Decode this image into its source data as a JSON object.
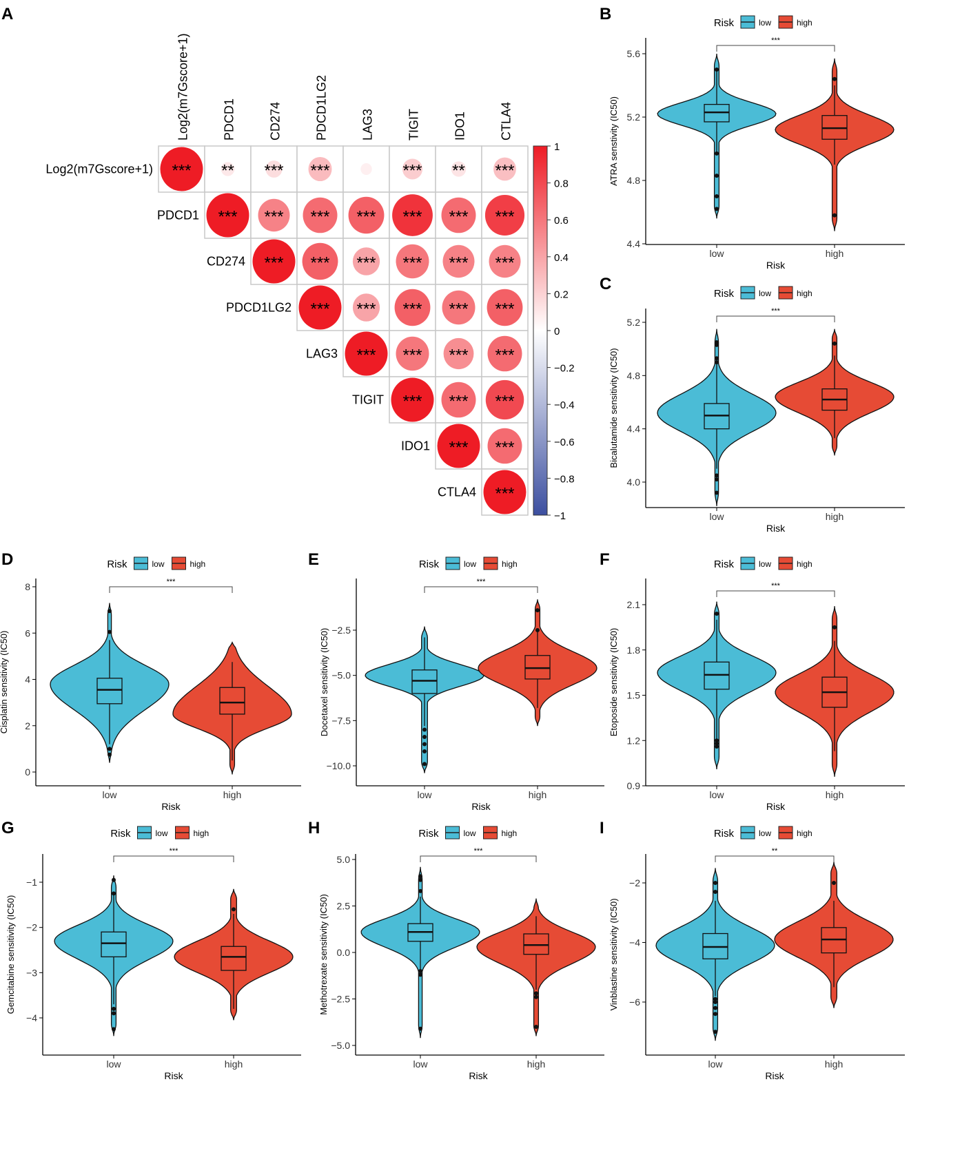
{
  "colors": {
    "low": "#4BBCD6",
    "high": "#E64B35",
    "corr_pos": "#EE1C25",
    "corr_neg": "#3C4FA0"
  },
  "panel_labels": [
    "A",
    "B",
    "C",
    "D",
    "E",
    "F",
    "G",
    "H",
    "I"
  ],
  "chart_data": [
    {
      "panel": "A",
      "type": "heatmap",
      "subtype": "correlation-circles",
      "variables": [
        "Log2(m7Gscore+1)",
        "PDCD1",
        "CD274",
        "PDCD1LG2",
        "LAG3",
        "TIGIT",
        "IDO1",
        "CTLA4"
      ],
      "matrix_upper": [
        [
          1,
          0.1,
          0.15,
          0.3,
          0.07,
          0.22,
          0.12,
          0.28
        ],
        [
          1,
          0.55,
          0.65,
          0.7,
          0.9,
          0.65,
          0.85
        ],
        [
          1,
          0.7,
          0.4,
          0.6,
          0.55,
          0.55
        ],
        [
          1,
          0.4,
          0.7,
          0.6,
          0.7
        ],
        [
          1,
          0.6,
          0.5,
          0.65
        ],
        [
          1,
          0.65,
          0.8
        ],
        [
          1,
          0.65
        ],
        [
          1
        ]
      ],
      "signif_upper": [
        [
          "***",
          "**",
          "***",
          "***",
          "",
          "***",
          "**",
          "***"
        ],
        [
          "***",
          "***",
          "***",
          "***",
          "***",
          "***",
          "***"
        ],
        [
          "***",
          "***",
          "***",
          "***",
          "***",
          "***"
        ],
        [
          "***",
          "***",
          "***",
          "***",
          "***"
        ],
        [
          "***",
          "***",
          "***",
          "***"
        ],
        [
          "***",
          "***",
          "***"
        ],
        [
          "***",
          "***"
        ],
        [
          "***"
        ]
      ],
      "colorbar_ticks": [
        "1",
        "0.8",
        "0.6",
        "0.4",
        "0.2",
        "0",
        "−0.2",
        "−0.4",
        "−0.6",
        "−0.8",
        "−1"
      ],
      "range": [
        -1,
        1
      ]
    },
    {
      "panel": "B",
      "type": "violin",
      "ylabel": "ATRA senstivity (IC50)",
      "xlabel": "Risk",
      "categories": [
        "low",
        "high"
      ],
      "legend_title": "Risk",
      "legend": [
        "low",
        "high"
      ],
      "signif": "***",
      "yticks": [
        "4.4",
        "4.8",
        "5.2",
        "5.6"
      ],
      "ylim": [
        4.4,
        5.6
      ],
      "groups": [
        {
          "name": "low",
          "min": 4.56,
          "max": 5.6,
          "peak": 5.22,
          "sd_lo": 0.07,
          "sd_hi": 0.07,
          "tail": 0.04,
          "q1": 5.17,
          "median": 5.23,
          "q3": 5.28,
          "whisker": [
            4.97,
            5.5
          ],
          "outliers": [
            5.5,
            4.97,
            4.83,
            4.7,
            4.62
          ]
        },
        {
          "name": "high",
          "min": 4.48,
          "max": 5.57,
          "peak": 5.12,
          "sd_lo": 0.09,
          "sd_hi": 0.09,
          "tail": 0.04,
          "q1": 5.06,
          "median": 5.13,
          "q3": 5.21,
          "whisker": [
            4.9,
            5.4
          ],
          "outliers": [
            5.44,
            4.58
          ]
        }
      ]
    },
    {
      "panel": "C",
      "type": "violin",
      "ylabel": "Bicalutamide sensitivity (IC50)",
      "xlabel": "Risk",
      "categories": [
        "low",
        "high"
      ],
      "legend_title": "Risk",
      "legend": [
        "low",
        "high"
      ],
      "signif": "***",
      "yticks": [
        "4.0",
        "4.4",
        "4.8",
        "5.2"
      ],
      "ylim": [
        4.0,
        5.2
      ],
      "groups": [
        {
          "name": "low",
          "min": 3.82,
          "max": 5.15,
          "peak": 4.52,
          "sd_lo": 0.14,
          "sd_hi": 0.14,
          "tail": 0.03,
          "q1": 4.4,
          "median": 4.5,
          "q3": 4.59,
          "whisker": [
            4.1,
            4.9
          ],
          "outliers": [
            5.05,
            5.03,
            4.93,
            4.9,
            4.05,
            4.02,
            3.92
          ]
        },
        {
          "name": "high",
          "min": 4.2,
          "max": 5.15,
          "peak": 4.64,
          "sd_lo": 0.12,
          "sd_hi": 0.11,
          "tail": 0.04,
          "q1": 4.54,
          "median": 4.62,
          "q3": 4.7,
          "whisker": [
            4.33,
            4.95
          ],
          "outliers": [
            5.04
          ]
        }
      ]
    },
    {
      "panel": "D",
      "type": "violin",
      "ylabel": "Cisplatin sensitivity (IC50)",
      "xlabel": "Risk",
      "categories": [
        "low",
        "high"
      ],
      "legend_title": "Risk",
      "legend": [
        "low",
        "high"
      ],
      "signif": "***",
      "yticks": [
        "0",
        "2",
        "4",
        "6",
        "8"
      ],
      "ylim": [
        0,
        8
      ],
      "groups": [
        {
          "name": "low",
          "min": 0.4,
          "max": 7.3,
          "peak": 3.8,
          "sd_lo": 1.1,
          "sd_hi": 0.8,
          "tail": 0.03,
          "q1": 2.95,
          "median": 3.55,
          "q3": 4.05,
          "whisker": [
            1.2,
            5.7
          ],
          "outliers": [
            6.95,
            6.05,
            1.0,
            0.75
          ]
        },
        {
          "name": "high",
          "min": -0.1,
          "max": 5.6,
          "peak": 2.5,
          "sd_lo": 0.6,
          "sd_hi": 1.2,
          "tail": 0.04,
          "q1": 2.5,
          "median": 3.0,
          "q3": 3.65,
          "whisker": [
            0.5,
            4.75
          ],
          "outliers": []
        }
      ]
    },
    {
      "panel": "E",
      "type": "violin",
      "ylabel": "Docetaxel sensitivity (IC50)",
      "xlabel": "Risk",
      "categories": [
        "low",
        "high"
      ],
      "legend_title": "Risk",
      "legend": [
        "low",
        "high"
      ],
      "signif": "***",
      "yticks": [
        "−10.0",
        "−7.5",
        "−5.0",
        "−2.5"
      ],
      "ylim": [
        -10,
        -2.5
      ],
      "groups": [
        {
          "name": "low",
          "min": -10.4,
          "max": -2.3,
          "peak": -5.0,
          "sd_lo": 0.6,
          "sd_hi": 0.6,
          "tail": 0.05,
          "q1": -6.0,
          "median": -5.3,
          "q3": -4.7,
          "whisker": [
            -7.8,
            -2.9
          ],
          "outliers": [
            -8.0,
            -8.4,
            -8.8,
            -9.2,
            -9.9
          ]
        },
        {
          "name": "high",
          "min": -7.8,
          "max": -0.8,
          "peak": -4.6,
          "sd_lo": 0.9,
          "sd_hi": 0.9,
          "tail": 0.04,
          "q1": -5.2,
          "median": -4.6,
          "q3": -3.9,
          "whisker": [
            -6.8,
            -2.5
          ],
          "outliers": [
            -1.4,
            -2.5
          ]
        }
      ]
    },
    {
      "panel": "F",
      "type": "violin",
      "ylabel": "Etoposide sensitivity (IC50)",
      "xlabel": "Risk",
      "categories": [
        "low",
        "high"
      ],
      "legend_title": "Risk",
      "legend": [
        "low",
        "high"
      ],
      "signif": "***",
      "yticks": [
        "0.9",
        "1.2",
        "1.5",
        "1.8",
        "2.1"
      ],
      "ylim": [
        0.9,
        2.1
      ],
      "groups": [
        {
          "name": "low",
          "min": 1.01,
          "max": 2.12,
          "peak": 1.65,
          "sd_lo": 0.12,
          "sd_hi": 0.11,
          "tail": 0.04,
          "q1": 1.54,
          "median": 1.635,
          "q3": 1.72,
          "whisker": [
            1.2,
            2.0
          ],
          "outliers": [
            1.2,
            1.18,
            1.16,
            2.04
          ]
        },
        {
          "name": "high",
          "min": 0.96,
          "max": 2.09,
          "peak": 1.52,
          "sd_lo": 0.13,
          "sd_hi": 0.12,
          "tail": 0.04,
          "q1": 1.42,
          "median": 1.52,
          "q3": 1.62,
          "whisker": [
            1.13,
            1.86
          ],
          "outliers": [
            1.95
          ]
        }
      ]
    },
    {
      "panel": "G",
      "type": "violin",
      "ylabel": "Gemcitabine sensitivity (IC50)",
      "xlabel": "Risk",
      "categories": [
        "low",
        "high"
      ],
      "legend_title": "Risk",
      "legend": [
        "low",
        "high"
      ],
      "signif": "***",
      "yticks": [
        "−4",
        "−3",
        "−2",
        "−1"
      ],
      "ylim": [
        -4,
        -1
      ],
      "groups": [
        {
          "name": "low",
          "min": -4.4,
          "max": -0.85,
          "peak": -2.3,
          "sd_lo": 0.4,
          "sd_hi": 0.35,
          "tail": 0.04,
          "q1": -2.65,
          "median": -2.35,
          "q3": -2.1,
          "whisker": [
            -3.7,
            -1.25
          ],
          "outliers": [
            -0.95,
            -1.25,
            -3.8,
            -3.9,
            -4.25
          ]
        },
        {
          "name": "high",
          "min": -4.05,
          "max": -1.15,
          "peak": -2.65,
          "sd_lo": 0.35,
          "sd_hi": 0.35,
          "tail": 0.05,
          "q1": -2.95,
          "median": -2.65,
          "q3": -2.42,
          "whisker": [
            -3.8,
            -1.7
          ],
          "outliers": [
            -1.6
          ]
        }
      ]
    },
    {
      "panel": "H",
      "type": "violin",
      "ylabel": "Methotrexate sensitivity (IC50)",
      "xlabel": "Risk",
      "categories": [
        "low",
        "high"
      ],
      "legend_title": "Risk",
      "legend": [
        "low",
        "high"
      ],
      "signif": "***",
      "yticks": [
        "−5.0",
        "−2.5",
        "0.0",
        "2.5",
        "5.0"
      ],
      "ylim": [
        -5,
        5
      ],
      "groups": [
        {
          "name": "low",
          "min": -4.6,
          "max": 4.6,
          "peak": 1.1,
          "sd_lo": 0.8,
          "sd_hi": 0.7,
          "tail": 0.03,
          "q1": 0.6,
          "median": 1.1,
          "q3": 1.55,
          "whisker": [
            -0.9,
            3.0
          ],
          "outliers": [
            4.1,
            3.9,
            3.3,
            -1.0,
            -1.2,
            -4.1
          ]
        },
        {
          "name": "high",
          "min": -4.5,
          "max": 2.9,
          "peak": 0.3,
          "sd_lo": 0.9,
          "sd_hi": 0.8,
          "tail": 0.04,
          "q1": -0.1,
          "median": 0.4,
          "q3": 1.0,
          "whisker": [
            -2.0,
            1.95
          ],
          "outliers": [
            -2.2,
            -2.4,
            -4.0
          ]
        }
      ]
    },
    {
      "panel": "I",
      "type": "violin",
      "ylabel": "Vinblastine sensitivity (IC50)",
      "xlabel": "Risk",
      "categories": [
        "low",
        "high"
      ],
      "legend_title": "Risk",
      "legend": [
        "low",
        "high"
      ],
      "signif": "**",
      "yticks": [
        "−6",
        "−4",
        "−2"
      ],
      "ylim": [
        -6,
        -2
      ],
      "groups": [
        {
          "name": "low",
          "min": -7.3,
          "max": -1.5,
          "peak": -4.1,
          "sd_lo": 0.6,
          "sd_hi": 0.6,
          "tail": 0.04,
          "q1": -4.55,
          "median": -4.15,
          "q3": -3.7,
          "whisker": [
            -5.8,
            -2.6
          ],
          "outliers": [
            -2.0,
            -2.3,
            -5.9,
            -6.0,
            -6.2,
            -6.4,
            -7.0
          ]
        },
        {
          "name": "high",
          "min": -6.2,
          "max": -1.3,
          "peak": -3.9,
          "sd_lo": 0.6,
          "sd_hi": 0.6,
          "tail": 0.05,
          "q1": -4.35,
          "median": -3.9,
          "q3": -3.5,
          "whisker": [
            -5.5,
            -2.6
          ],
          "outliers": [
            -2.0
          ]
        }
      ]
    }
  ]
}
